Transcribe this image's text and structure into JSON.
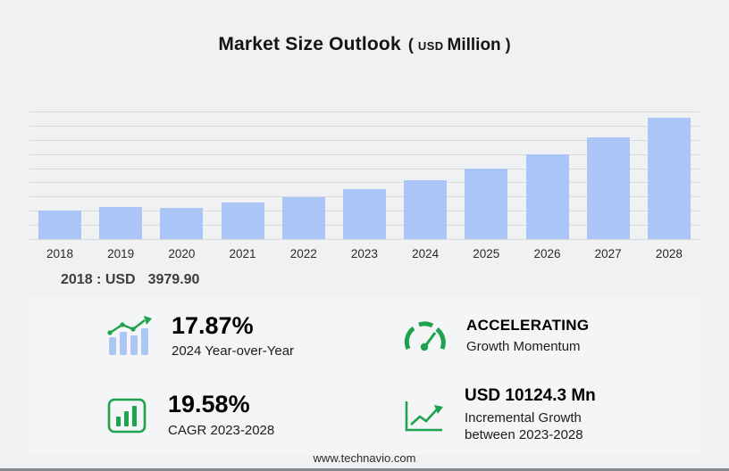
{
  "colors": {
    "background": "#f0f1f2",
    "panel": "#f4f5f6",
    "gridline": "#d9dadb",
    "accent_green": "#1fa24d",
    "bar_blue": "#abc6f6"
  },
  "title": {
    "main": "Market Size Outlook",
    "unit_open": "(",
    "currency": "USD",
    "unit": "Million",
    "unit_close": ")"
  },
  "chart_data": {
    "type": "bar",
    "title": "Market Size Outlook (USD Million)",
    "categories": [
      "2018",
      "2019",
      "2020",
      "2021",
      "2022",
      "2023",
      "2024",
      "2025",
      "2026",
      "2027",
      "2028"
    ],
    "values": [
      3979.9,
      4495,
      4430,
      5105,
      5905,
      7005.3,
      8257.7,
      9980,
      11970,
      14330,
      17129.6
    ],
    "xlabel": "",
    "ylabel": "",
    "ylim": [
      0,
      18000
    ],
    "unit": "USD Million",
    "bar_color": "#abc6f6",
    "grid": true,
    "gridline_count": 10,
    "legend": false
  },
  "annotation": {
    "label": "2018 : USD",
    "value": "3979.90"
  },
  "stats": [
    {
      "icon": "bar-growth-icon",
      "value": "17.87%",
      "label": "2024 Year-over-Year"
    },
    {
      "icon": "speedometer-icon",
      "value": "ACCELERATING",
      "label": "Growth Momentum"
    },
    {
      "icon": "chart-board-icon",
      "value": "19.58%",
      "label": "CAGR 2023-2028"
    },
    {
      "icon": "line-growth-icon",
      "value": "USD 10124.3 Mn",
      "label": "Incremental Growth between 2023-2028"
    }
  ],
  "footer": {
    "website": "www.technavio.com"
  }
}
